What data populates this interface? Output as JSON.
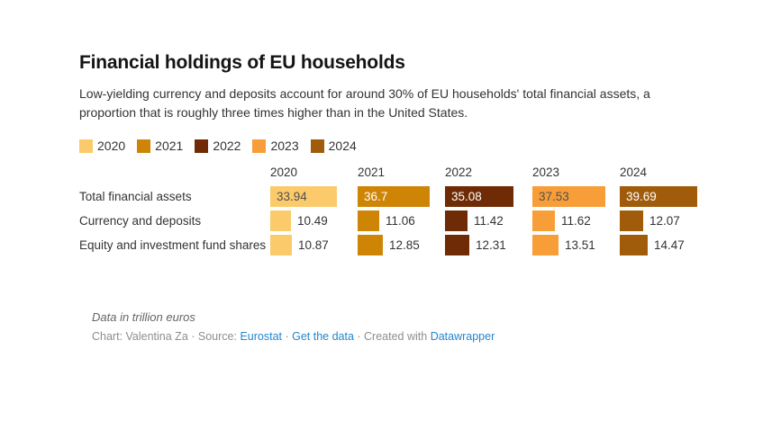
{
  "chart_data": {
    "type": "bar",
    "title": "Financial holdings of EU households",
    "subtitle": "Low-yielding currency and deposits account for around 30% of EU households' total financial assets, a proportion that is roughly three times higher than in the United States.",
    "categories": [
      "2020",
      "2021",
      "2022",
      "2023",
      "2024"
    ],
    "colors": [
      "#FBCB6B",
      "#CE8506",
      "#6F2B05",
      "#F89E38",
      "#A05C0B"
    ],
    "rows": [
      {
        "label": "Total financial assets",
        "values": [
          33.94,
          36.7,
          35.08,
          37.53,
          39.69
        ],
        "value_position": "inside"
      },
      {
        "label": "Currency and deposits",
        "values": [
          10.49,
          11.06,
          11.42,
          11.62,
          12.07
        ],
        "value_position": "outside"
      },
      {
        "label": "Equity and investment fund shares",
        "values": [
          10.87,
          12.85,
          12.31,
          13.51,
          14.47
        ],
        "value_position": "outside"
      }
    ],
    "unit": "trillion euros",
    "note": "Data in trillion euros",
    "max_value": 39.69,
    "legend_position": "top",
    "grid": false
  },
  "footer": {
    "byline_prefix": "Chart: Valentina Za · Source: ",
    "sep1": " · ",
    "sep2": " · Created with ",
    "links": [
      "Eurostat",
      "Get the data",
      "Datawrapper"
    ]
  }
}
